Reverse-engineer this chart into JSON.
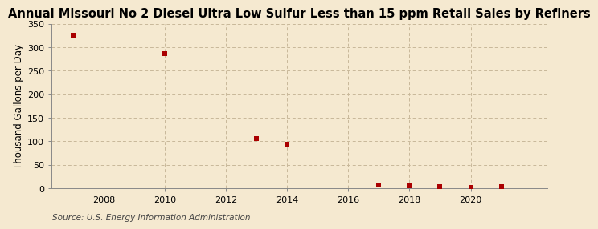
{
  "title": "Annual Missouri No 2 Diesel Ultra Low Sulfur Less than 15 ppm Retail Sales by Refiners",
  "ylabel": "Thousand Gallons per Day",
  "source": "Source: U.S. Energy Information Administration",
  "background_color": "#f5e9d0",
  "plot_bg_color": "#f5e9d0",
  "x_data": [
    2007,
    2010,
    2013,
    2014,
    2017,
    2018,
    2019,
    2020,
    2021
  ],
  "y_data": [
    325.0,
    287.0,
    105.0,
    93.0,
    6.0,
    5.0,
    3.0,
    2.0,
    3.0
  ],
  "marker_color": "#aa0000",
  "marker": "s",
  "marker_size": 4,
  "xlim": [
    2006.3,
    2022.5
  ],
  "ylim": [
    0,
    350
  ],
  "yticks": [
    0,
    50,
    100,
    150,
    200,
    250,
    300,
    350
  ],
  "xticks": [
    2008,
    2010,
    2012,
    2014,
    2016,
    2018,
    2020
  ],
  "grid_color": "#c8b89a",
  "title_fontsize": 10.5,
  "axis_fontsize": 8.5,
  "tick_fontsize": 8,
  "source_fontsize": 7.5
}
